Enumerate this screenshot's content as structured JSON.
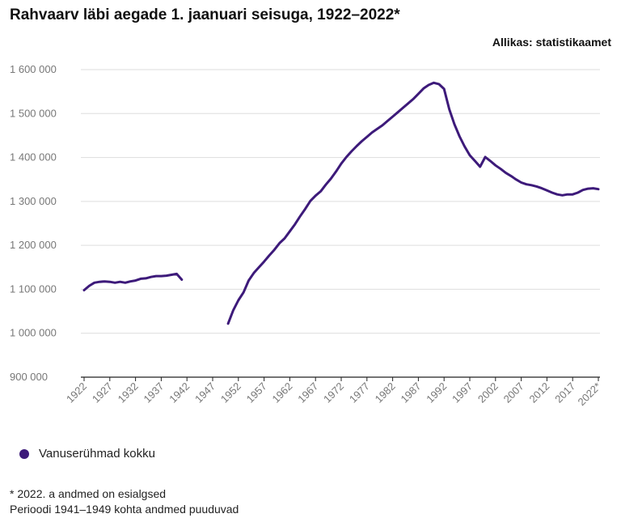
{
  "chart_data": {
    "type": "line",
    "title": "Rahvaarv läbi aegade 1. jaanuari seisuga, 1922–2022*",
    "source": "Allikas: statistikaamet",
    "xlabel": "",
    "ylabel": "",
    "xlim": [
      1922,
      2022
    ],
    "ylim": [
      900000,
      1600000
    ],
    "y_ticks": [
      900000,
      1000000,
      1100000,
      1200000,
      1300000,
      1400000,
      1500000,
      1600000
    ],
    "y_tick_labels": [
      "900 000",
      "1 000 000",
      "1 100 000",
      "1 200 000",
      "1 300 000",
      "1 400 000",
      "1 500 000",
      "1 600 000"
    ],
    "x_tick_years": [
      1922,
      1927,
      1932,
      1937,
      1942,
      1947,
      1952,
      1957,
      1962,
      1967,
      1972,
      1977,
      1982,
      1987,
      1992,
      1997,
      2002,
      2007,
      2012,
      2017,
      2022
    ],
    "x_tick_labels": [
      "1922",
      "1927",
      "1932",
      "1937",
      "1942",
      "1947",
      "1952",
      "1957",
      "1962",
      "1967",
      "1972",
      "1977",
      "1982",
      "1987",
      "1992",
      "1997",
      "2002",
      "2007",
      "2012",
      "2017",
      "2022*"
    ],
    "color": "#3d1a7a",
    "series": [
      {
        "name": "Vanuserühmad kokku",
        "segments": [
          {
            "x": [
              1922,
              1923,
              1924,
              1925,
              1926,
              1927,
              1928,
              1929,
              1930,
              1931,
              1932,
              1933,
              1934,
              1935,
              1936,
              1937,
              1938,
              1939,
              1940,
              1941
            ],
            "y": [
              1098000,
              1108000,
              1115000,
              1117000,
              1118000,
              1117000,
              1115000,
              1117000,
              1115000,
              1118000,
              1120000,
              1124000,
              1125000,
              1128000,
              1130000,
              1130000,
              1131000,
              1133000,
              1135000,
              1122000
            ]
          },
          {
            "x": [
              1950,
              1951,
              1952,
              1953,
              1954,
              1955,
              1956,
              1957,
              1958,
              1959,
              1960,
              1961,
              1962,
              1963,
              1964,
              1965,
              1966,
              1967,
              1968,
              1969,
              1970,
              1971,
              1972,
              1973,
              1974,
              1975,
              1976,
              1977,
              1978,
              1979,
              1980,
              1981,
              1982,
              1983,
              1984,
              1985,
              1986,
              1987,
              1988,
              1989,
              1990,
              1991,
              1992,
              1993,
              1994,
              1995,
              1996,
              1997,
              1998,
              1999,
              2000,
              2001,
              2002,
              2003,
              2004,
              2005,
              2006,
              2007,
              2008,
              2009,
              2010,
              2011,
              2012,
              2013,
              2014,
              2015,
              2016,
              2017,
              2018,
              2019,
              2020,
              2021,
              2022
            ],
            "y": [
              1022000,
              1052000,
              1075000,
              1093000,
              1120000,
              1137000,
              1150000,
              1163000,
              1177000,
              1190000,
              1205000,
              1216000,
              1232000,
              1248000,
              1266000,
              1283000,
              1301000,
              1313000,
              1323000,
              1338000,
              1352000,
              1368000,
              1386000,
              1401000,
              1414000,
              1426000,
              1437000,
              1447000,
              1457000,
              1465000,
              1473000,
              1483000,
              1493000,
              1503000,
              1513000,
              1523000,
              1533000,
              1545000,
              1557000,
              1565000,
              1570000,
              1567000,
              1556000,
              1510000,
              1476000,
              1448000,
              1425000,
              1405000,
              1392000,
              1379000,
              1401000,
              1392000,
              1382000,
              1374000,
              1365000,
              1358000,
              1350000,
              1343000,
              1339000,
              1337000,
              1334000,
              1330000,
              1325000,
              1320000,
              1316000,
              1314000,
              1316000,
              1316000,
              1320000,
              1326000,
              1329000,
              1330000,
              1328000
            ]
          }
        ]
      }
    ]
  },
  "legend": {
    "label": "Vanuserühmad kokku"
  },
  "notes": {
    "line1": "* 2022. a andmed on esialgsed",
    "line2": "Perioodi 1941–1949 kohta andmed puuduvad"
  }
}
